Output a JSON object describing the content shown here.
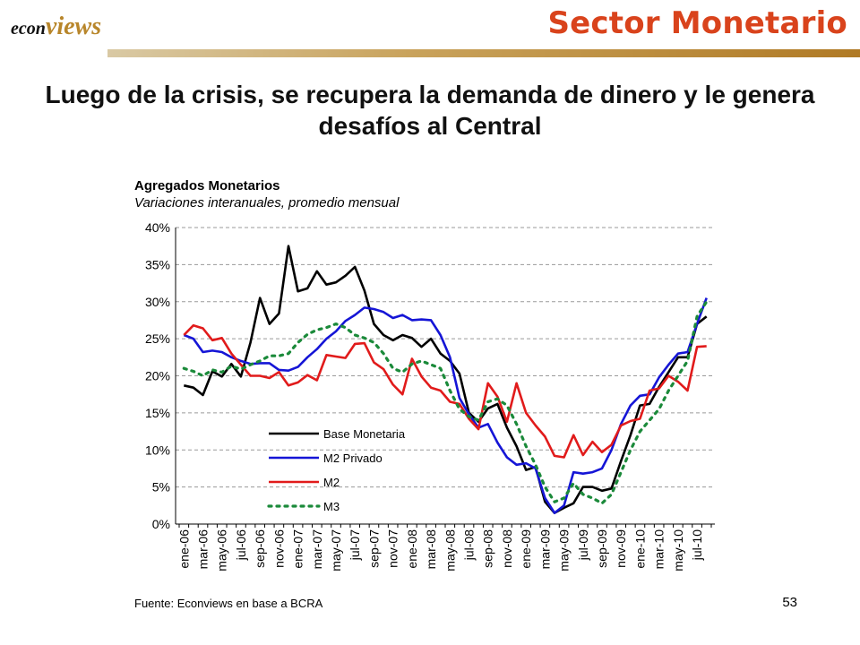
{
  "header": {
    "logo_part1": "econ",
    "logo_part2": "views",
    "section_title": "Sector Monetario",
    "accent_color": "#d9431c"
  },
  "headline": "Luego de la crisis, se recupera la demanda de dinero y le genera desafíos al Central",
  "footer": {
    "source": "Fuente: Econviews en base a BCRA",
    "page_number": "53"
  },
  "chart_data": {
    "type": "line",
    "title": "Agregados Monetarios",
    "subtitle": "Variaciones interanuales, promedio mensual",
    "y_ticks": [
      "0%",
      "5%",
      "10%",
      "15%",
      "20%",
      "25%",
      "30%",
      "35%",
      "40%"
    ],
    "ylim": [
      0,
      40
    ],
    "grid": true,
    "legend_position": "inside-left",
    "x_tick_labels": [
      "ene-06",
      "mar-06",
      "may-06",
      "jul-06",
      "sep-06",
      "nov-06",
      "ene-07",
      "mar-07",
      "may-07",
      "jul-07",
      "sep-07",
      "nov-07",
      "ene-08",
      "mar-08",
      "may-08",
      "jul-08",
      "sep-08",
      "nov-08",
      "ene-09",
      "mar-09",
      "may-09",
      "jul-09",
      "sep-09",
      "nov-09",
      "ene-10",
      "mar-10",
      "may-10",
      "jul-10"
    ],
    "x": [
      "ene-06",
      "feb-06",
      "mar-06",
      "abr-06",
      "may-06",
      "jun-06",
      "jul-06",
      "ago-06",
      "sep-06",
      "oct-06",
      "nov-06",
      "dic-06",
      "ene-07",
      "feb-07",
      "mar-07",
      "abr-07",
      "may-07",
      "jun-07",
      "jul-07",
      "ago-07",
      "sep-07",
      "oct-07",
      "nov-07",
      "dic-07",
      "ene-08",
      "feb-08",
      "mar-08",
      "abr-08",
      "may-08",
      "jun-08",
      "jul-08",
      "ago-08",
      "sep-08",
      "oct-08",
      "nov-08",
      "dic-08",
      "ene-09",
      "feb-09",
      "mar-09",
      "abr-09",
      "may-09",
      "jun-09",
      "jul-09",
      "ago-09",
      "sep-09",
      "oct-09",
      "nov-09",
      "dic-09",
      "ene-10",
      "feb-10",
      "mar-10",
      "abr-10",
      "may-10",
      "jun-10",
      "jul-10",
      "ago-10"
    ],
    "series": [
      {
        "name": "Base Monetaria",
        "color": "#000000",
        "dash": "solid",
        "values": [
          18.7,
          18.4,
          17.4,
          20.6,
          19.9,
          21.6,
          19.9,
          24.5,
          30.5,
          27.0,
          28.4,
          37.5,
          31.4,
          31.8,
          34.1,
          32.3,
          32.6,
          33.5,
          34.7,
          31.5,
          27.0,
          25.5,
          24.8,
          25.5,
          25.1,
          23.9,
          25.0,
          23.0,
          22.0,
          20.3,
          15.0,
          13.8,
          15.6,
          16.2,
          13.0,
          10.5,
          7.3,
          7.7,
          3.0,
          1.5,
          2.2,
          2.8,
          5.0,
          5.0,
          4.5,
          4.8,
          8.5,
          12.0,
          16.0,
          16.2,
          18.5,
          20.5,
          22.5,
          22.5,
          27.0,
          28.0
        ]
      },
      {
        "name": "M2 Privado",
        "color": "#1515d6",
        "dash": "solid",
        "values": [
          25.5,
          25.0,
          23.2,
          23.4,
          23.2,
          22.5,
          22.0,
          21.6,
          21.7,
          21.7,
          20.8,
          20.7,
          21.2,
          22.5,
          23.6,
          25.0,
          26.0,
          27.4,
          28.2,
          29.2,
          29.0,
          28.6,
          27.8,
          28.2,
          27.5,
          27.6,
          27.5,
          25.5,
          22.5,
          17.0,
          14.8,
          13.0,
          13.5,
          11.0,
          9.0,
          8.0,
          8.2,
          7.5,
          3.5,
          1.5,
          2.5,
          7.0,
          6.8,
          7.0,
          7.5,
          10.0,
          13.5,
          16.0,
          17.3,
          17.5,
          19.8,
          21.5,
          23.0,
          23.2,
          27.0,
          30.5
        ]
      },
      {
        "name": "M2",
        "color": "#e11b1b",
        "dash": "solid",
        "values": [
          25.5,
          26.8,
          26.4,
          24.8,
          25.1,
          23.0,
          21.5,
          20.0,
          20.0,
          19.7,
          20.5,
          18.7,
          19.1,
          20.1,
          19.4,
          22.8,
          22.6,
          22.4,
          24.3,
          24.4,
          21.8,
          20.9,
          18.8,
          17.5,
          22.3,
          19.9,
          18.4,
          18.0,
          16.5,
          16.2,
          14.2,
          12.8,
          19.0,
          17.2,
          13.8,
          19.0,
          15.0,
          13.3,
          11.8,
          9.2,
          9.0,
          12.0,
          9.3,
          11.1,
          9.7,
          10.7,
          13.3,
          13.9,
          14.2,
          18.0,
          18.3,
          20.0,
          19.2,
          18.0,
          23.9,
          24.0
        ]
      },
      {
        "name": "M3",
        "color": "#1b8a3a",
        "dash": "dotted",
        "values": [
          21.0,
          20.6,
          20.0,
          20.8,
          20.5,
          21.3,
          20.9,
          21.5,
          22.0,
          22.7,
          22.7,
          23.0,
          24.5,
          25.6,
          26.2,
          26.5,
          27.0,
          26.5,
          25.5,
          25.1,
          24.5,
          23.0,
          21.0,
          20.5,
          21.6,
          22.0,
          21.5,
          21.0,
          18.0,
          15.5,
          14.5,
          14.0,
          16.5,
          16.9,
          16.0,
          13.5,
          10.5,
          8.0,
          5.0,
          3.0,
          3.5,
          5.5,
          4.0,
          3.5,
          2.8,
          4.0,
          7.0,
          10.0,
          12.5,
          14.0,
          15.5,
          18.0,
          20.0,
          22.0,
          28.0,
          30.0
        ]
      }
    ]
  }
}
